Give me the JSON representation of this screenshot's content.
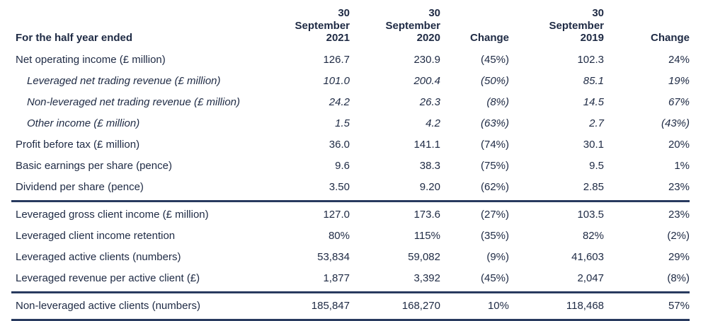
{
  "colors": {
    "text": "#1e2a44",
    "rule": "#283a5f",
    "background": "#ffffff"
  },
  "table": {
    "header": {
      "label": "For the half year ended",
      "columns": [
        "30\nSeptember\n2021",
        "30\nSeptember\n2020",
        "Change",
        "30\nSeptember\n2019",
        "Change"
      ]
    },
    "rows": [
      {
        "label": "Net operating income (£ million)",
        "style": "normal",
        "values": [
          "126.7",
          "230.9",
          "(45%)",
          "102.3",
          "24%"
        ]
      },
      {
        "label": "Leveraged net trading revenue (£ million)",
        "style": "italic",
        "values": [
          "101.0",
          "200.4",
          "(50%)",
          "85.1",
          "19%"
        ]
      },
      {
        "label": "Non-leveraged net trading revenue (£ million)",
        "style": "italic",
        "values": [
          "24.2",
          "26.3",
          "(8%)",
          "14.5",
          "67%"
        ]
      },
      {
        "label": "Other income (£ million)",
        "style": "italic",
        "values": [
          "1.5",
          "4.2",
          "(63%)",
          "2.7",
          "(43%)"
        ]
      },
      {
        "label": "Profit before tax (£ million)",
        "style": "normal",
        "values": [
          "36.0",
          "141.1",
          "(74%)",
          "30.1",
          "20%"
        ]
      },
      {
        "label": "Basic earnings per share (pence)",
        "style": "normal",
        "values": [
          "9.6",
          "38.3",
          "(75%)",
          "9.5",
          "1%"
        ]
      },
      {
        "label": "Dividend per share (pence)",
        "style": "normal",
        "values": [
          "3.50",
          "9.20",
          "(62%)",
          "2.85",
          "23%"
        ]
      },
      {
        "label": "Leveraged gross client income (£ million)",
        "style": "normal",
        "values": [
          "127.0",
          "173.6",
          "(27%)",
          "103.5",
          "23%"
        ]
      },
      {
        "label": "Leveraged client income retention",
        "style": "normal",
        "values": [
          "80%",
          "115%",
          "(35%)",
          "82%",
          "(2%)"
        ]
      },
      {
        "label": "Leveraged active clients (numbers)",
        "style": "normal",
        "values": [
          "53,834",
          "59,082",
          "(9%)",
          "41,603",
          "29%"
        ]
      },
      {
        "label": "Leveraged revenue per active client (£)",
        "style": "normal",
        "values": [
          "1,877",
          "3,392",
          "(45%)",
          "2,047",
          "(8%)"
        ]
      },
      {
        "label": "Non-leveraged active clients (numbers)",
        "style": "normal",
        "values": [
          "185,847",
          "168,270",
          "10%",
          "118,468",
          "57%"
        ]
      }
    ]
  }
}
